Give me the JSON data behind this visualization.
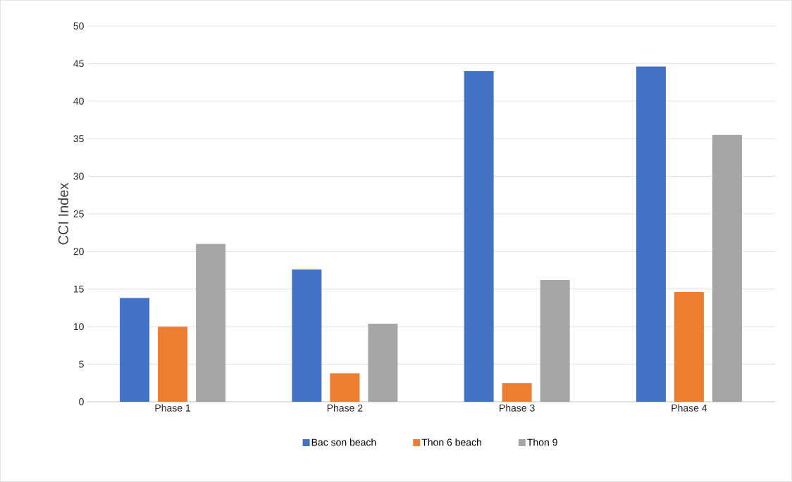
{
  "chart_data": {
    "type": "bar",
    "ylabel": "CCI Index",
    "categories": [
      "Phase 1",
      "Phase 2",
      "Phase 3",
      "Phase 4"
    ],
    "series": [
      {
        "name": "Bac son beach",
        "color": "#4472c4",
        "values": [
          13.8,
          17.6,
          44.0,
          44.6
        ]
      },
      {
        "name": "Thon 6 beach",
        "color": "#ed7d31",
        "values": [
          10.0,
          3.8,
          2.5,
          14.6
        ]
      },
      {
        "name": "Thon 9",
        "color": "#a5a5a5",
        "values": [
          21.0,
          10.4,
          16.2,
          35.5
        ]
      }
    ],
    "ylim": [
      0,
      50
    ],
    "yticks": [
      0,
      5,
      10,
      15,
      20,
      25,
      30,
      35,
      40,
      45,
      50
    ],
    "grid": "y",
    "legend": "bottom"
  }
}
